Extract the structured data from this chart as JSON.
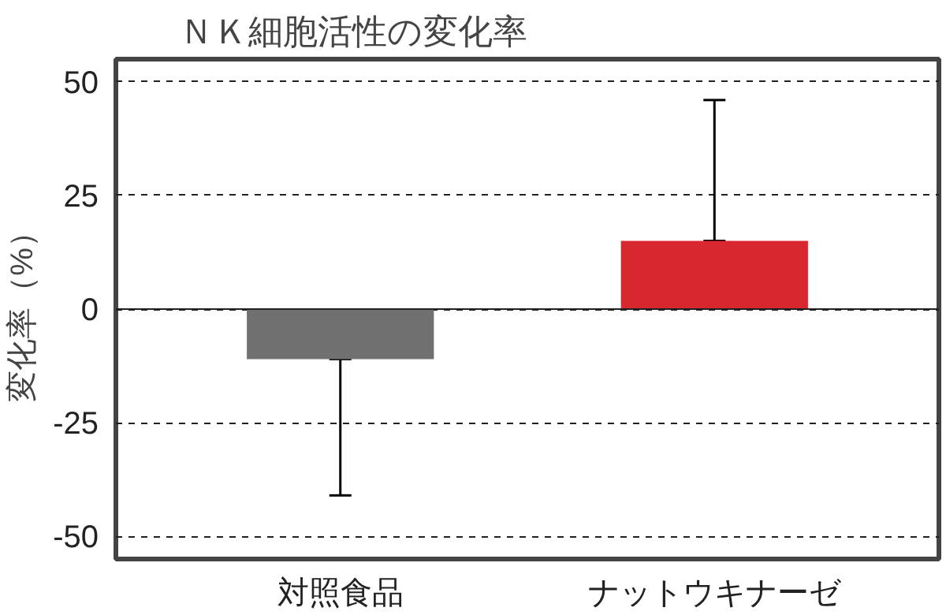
{
  "chart_data": {
    "type": "bar",
    "title": "ＮＫ細胞活性の変化率",
    "ylabel": "変化率（%）",
    "categories": [
      "対照食品",
      "ナットウキナーゼ"
    ],
    "values": [
      -11,
      15
    ],
    "colors": [
      "#707070",
      "#d7282f"
    ],
    "errors": [
      [
        -41,
        -11
      ],
      [
        15,
        46
      ]
    ],
    "ylim": [
      -55,
      55
    ],
    "yticks": [
      -50,
      -25,
      0,
      25,
      50
    ],
    "grid": "y"
  }
}
